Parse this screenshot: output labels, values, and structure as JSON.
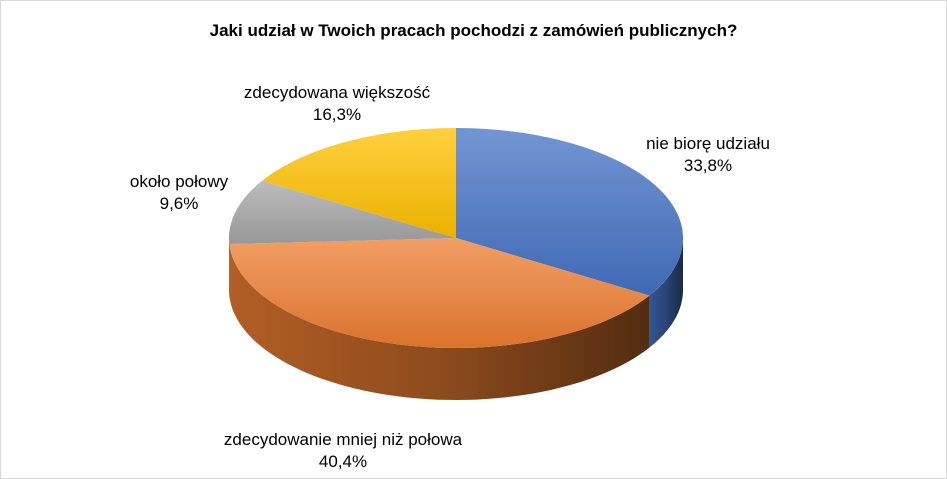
{
  "chart_data": {
    "type": "pie",
    "style": "3d",
    "title": "Jaki udział w Twoich pracach pochodzi z zamówień publicznych?",
    "slices": [
      {
        "label": "nie biorę udziału",
        "value": 33.8,
        "value_label": "33,8%",
        "color": "#4472c4"
      },
      {
        "label": "zdecydowanie mniej niż połowa",
        "value": 40.4,
        "value_label": "40,4%",
        "color": "#ed7d31"
      },
      {
        "label": "około połowy",
        "value": 9.6,
        "value_label": "9,6%",
        "color": "#a5a5a5"
      },
      {
        "label": "zdecydowana większość",
        "value": 16.3,
        "value_label": "16,3%",
        "color": "#ffc000"
      }
    ],
    "legend": "none"
  }
}
